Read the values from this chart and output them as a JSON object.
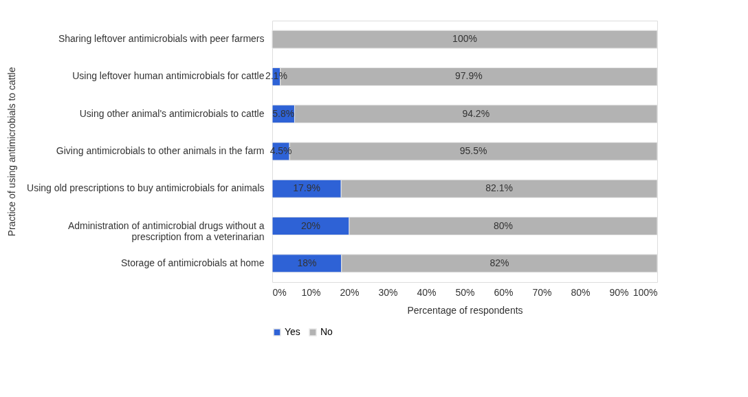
{
  "chart_data": {
    "type": "bar",
    "orientation": "horizontal",
    "stacked": true,
    "categories": [
      "Sharing leftover antimicrobials with peer farmers",
      "Using leftover human antimicrobials for cattle",
      "Using other animal's antimicrobials to cattle",
      "Giving antimicrobials to other animals in the farm",
      "Using old prescriptions to buy antimicrobials for animals",
      "Administration of antimicrobial drugs without a prescription from a veterinarian",
      "Storage of antimicrobials at home"
    ],
    "series": [
      {
        "name": "Yes",
        "color": "#2e62d6",
        "values": [
          0,
          2.1,
          5.8,
          4.5,
          17.9,
          20,
          18
        ],
        "value_labels": [
          null,
          "2.1%",
          "5.8%",
          "4.5%",
          "17.9%",
          "20%",
          "18%"
        ]
      },
      {
        "name": "No",
        "color": "#b3b3b3",
        "values": [
          100,
          97.9,
          94.2,
          95.5,
          82.1,
          80,
          82
        ],
        "value_labels": [
          "100%",
          "97.9%",
          "94.2%",
          "95.5%",
          "82.1%",
          "80%",
          "82%"
        ]
      }
    ],
    "xlim": [
      0,
      100
    ],
    "xticks": [
      {
        "value": 0,
        "label": "0%"
      },
      {
        "value": 10,
        "label": "10%"
      },
      {
        "value": 20,
        "label": "20%"
      },
      {
        "value": 30,
        "label": "30%"
      },
      {
        "value": 40,
        "label": "40%"
      },
      {
        "value": 50,
        "label": "50%"
      },
      {
        "value": 60,
        "label": "60%"
      },
      {
        "value": 70,
        "label": "70%"
      },
      {
        "value": 80,
        "label": "80%"
      },
      {
        "value": 90,
        "label": "90%"
      },
      {
        "value": 100,
        "label": "100%"
      }
    ],
    "xlabel": "Percentage of respondents",
    "ylabel": "Practice of using antimicrobials to cattle",
    "grid": false,
    "legend": "bottom"
  }
}
